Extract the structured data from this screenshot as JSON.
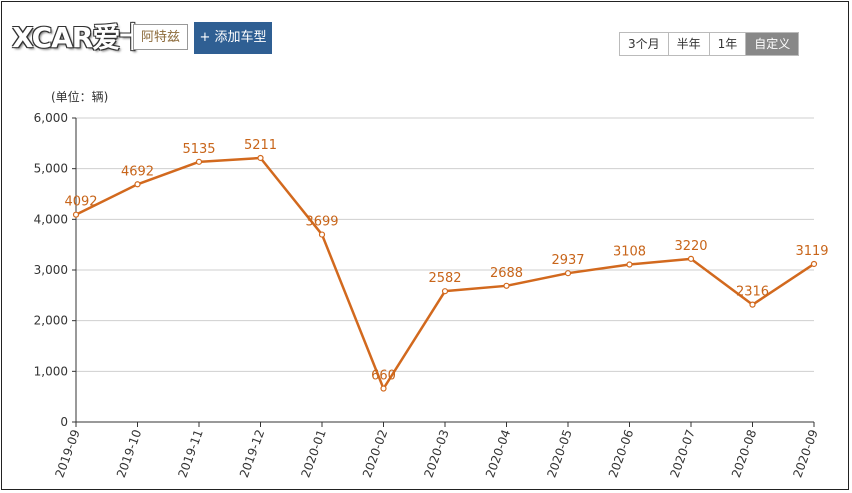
{
  "header": {
    "logo_text": "XCAR爱卡",
    "model_tag": "阿特兹",
    "add_button": "+ 添加车型",
    "ranges": [
      "3个月",
      "半年",
      "1年",
      "自定义"
    ],
    "active_range": "自定义"
  },
  "colors": {
    "line": "#d2691e",
    "label": "#c8651a",
    "accent_button": "#2f5f93"
  },
  "chart_data": {
    "type": "line",
    "unit_label": "(单位：辆)",
    "x": [
      "2019-09",
      "2019-10",
      "2019-11",
      "2019-12",
      "2020-01",
      "2020-02",
      "2020-03",
      "2020-04",
      "2020-05",
      "2020-06",
      "2020-07",
      "2020-08",
      "2020-09"
    ],
    "series": [
      {
        "values": [
          4092,
          4692,
          5135,
          5211,
          3699,
          660,
          2582,
          2688,
          2937,
          3108,
          3220,
          2316,
          3119
        ]
      }
    ],
    "data_labels": [
      "4092",
      "4692",
      "5135",
      "5211",
      "3699",
      "660",
      "2582",
      "2688",
      "2937",
      "3108",
      "3220",
      "2316",
      "3119"
    ],
    "ylim": [
      0,
      6000
    ],
    "yticks": [
      0,
      1000,
      2000,
      3000,
      4000,
      5000,
      6000
    ],
    "ytick_labels": [
      "0",
      "1,000",
      "2,000",
      "3,000",
      "4,000",
      "5,000",
      "6,000"
    ],
    "grid": true
  }
}
